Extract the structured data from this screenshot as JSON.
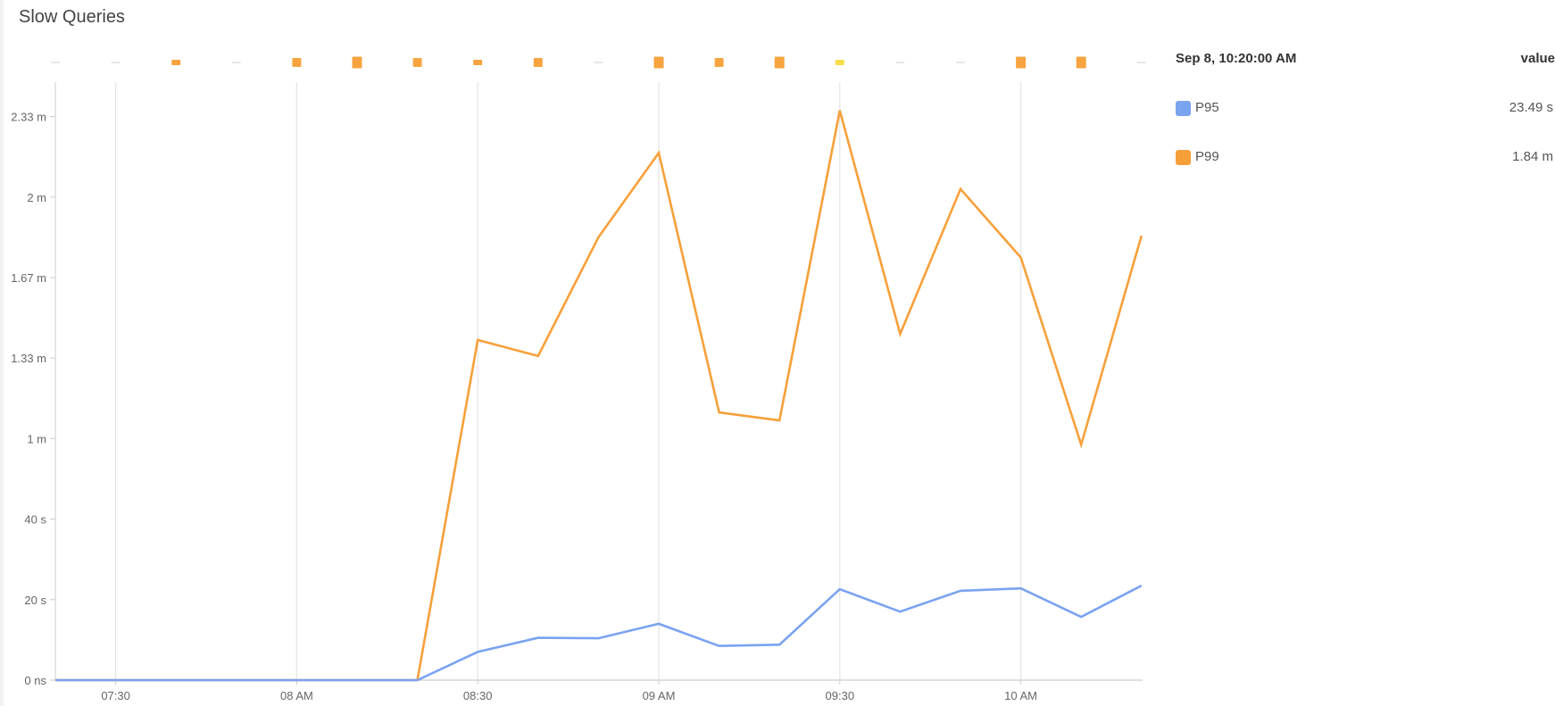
{
  "panel": {
    "title": "Slow Queries"
  },
  "legend": {
    "timestamp": "Sep 8, 10:20:00 AM",
    "value_header": "value",
    "items": [
      {
        "name": "P95",
        "value": "23.49 s",
        "color": "#7aa3f0"
      },
      {
        "name": "P99",
        "value": "1.84 m",
        "color": "#f7a03a"
      }
    ]
  },
  "chart_data": {
    "type": "line",
    "x": [
      "07:20",
      "07:30",
      "07:40",
      "07:50",
      "08:00",
      "08:10",
      "08:20",
      "08:30",
      "08:40",
      "08:50",
      "09:00",
      "09:10",
      "09:20",
      "09:30",
      "09:40",
      "09:50",
      "10:00",
      "10:10",
      "10:20"
    ],
    "x_tick_labels": [
      {
        "at": "07:30",
        "label": "07:30"
      },
      {
        "at": "08:00",
        "label": "08 AM"
      },
      {
        "at": "08:30",
        "label": "08:30"
      },
      {
        "at": "09:00",
        "label": "09 AM"
      },
      {
        "at": "09:30",
        "label": "09:30"
      },
      {
        "at": "10:00",
        "label": "10 AM"
      }
    ],
    "y_unit": "seconds",
    "y_ticks": [
      {
        "value": 0,
        "label": "0 ns"
      },
      {
        "value": 20,
        "label": "20 s"
      },
      {
        "value": 40,
        "label": "40 s"
      },
      {
        "value": 60,
        "label": "1 m"
      },
      {
        "value": 80,
        "label": "1.33 m"
      },
      {
        "value": 100,
        "label": "1.67 m"
      },
      {
        "value": 120,
        "label": "2 m"
      },
      {
        "value": 140,
        "label": "2.33 m"
      }
    ],
    "ylim": [
      0,
      148
    ],
    "grid": "vertical",
    "legend_placement": "right",
    "series": [
      {
        "name": "P95",
        "color": "#7aa3f0",
        "values": [
          0,
          0,
          0,
          0,
          0,
          0,
          0,
          7,
          10.5,
          10.4,
          14,
          8.5,
          8.8,
          22.6,
          17,
          22.2,
          22.8,
          15.7,
          23.49
        ]
      },
      {
        "name": "P99",
        "color": "#f7a03a",
        "values": [
          0,
          0,
          0,
          0,
          0,
          0,
          0,
          84.5,
          80.5,
          110,
          131,
          66.5,
          64.5,
          141.5,
          86,
          122,
          105,
          58.5,
          110.4
        ]
      }
    ],
    "annotations": [
      {
        "at": "07:20",
        "level": "none"
      },
      {
        "at": "07:30",
        "level": "none"
      },
      {
        "at": "07:40",
        "level": "low"
      },
      {
        "at": "07:50",
        "level": "none"
      },
      {
        "at": "08:00",
        "level": "medium"
      },
      {
        "at": "08:10",
        "level": "high"
      },
      {
        "at": "08:20",
        "level": "medium"
      },
      {
        "at": "08:30",
        "level": "low"
      },
      {
        "at": "08:40",
        "level": "medium"
      },
      {
        "at": "08:50",
        "level": "none"
      },
      {
        "at": "09:00",
        "level": "high"
      },
      {
        "at": "09:10",
        "level": "medium"
      },
      {
        "at": "09:20",
        "level": "high"
      },
      {
        "at": "09:30",
        "level": "yellow"
      },
      {
        "at": "09:40",
        "level": "none"
      },
      {
        "at": "09:50",
        "level": "none"
      },
      {
        "at": "10:00",
        "level": "high"
      },
      {
        "at": "10:10",
        "level": "high"
      },
      {
        "at": "10:20",
        "level": "none"
      }
    ],
    "annotation_colors": {
      "orange": "#f7a440",
      "yellow": "#f8dc4a",
      "none": "#cccccc"
    }
  }
}
